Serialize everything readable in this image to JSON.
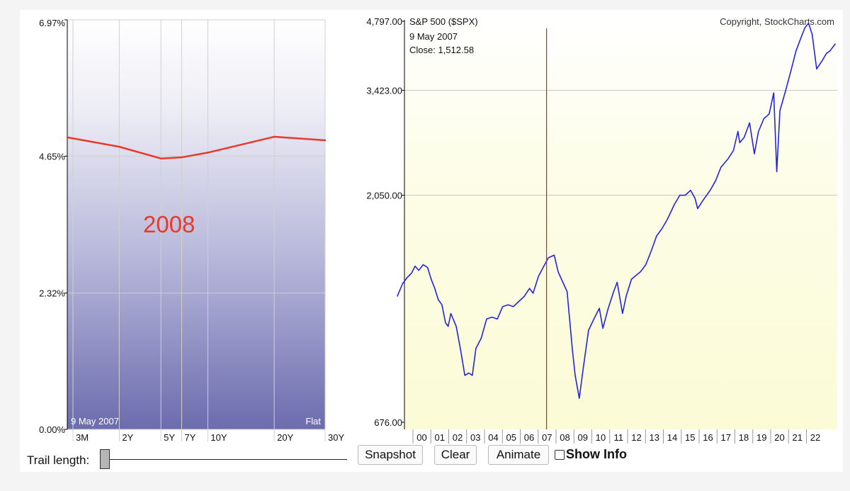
{
  "chart_data": [
    {
      "type": "line",
      "title": "",
      "annotation": "2008",
      "date_label": "9  May 2007",
      "curve_label": "Flat",
      "categories": [
        "3M",
        "2Y",
        "5Y",
        "7Y",
        "10Y",
        "20Y",
        "30Y"
      ],
      "series": [
        {
          "values": [
            4.97,
            4.81,
            4.61,
            4.63,
            4.71,
            4.98,
            4.92
          ]
        }
      ],
      "ylim": [
        0,
        6.97
      ],
      "y_ticks": [
        "6.97%",
        "4.65%",
        "2.32%",
        "0.00%"
      ],
      "y_tick_values": [
        6.97,
        4.65,
        2.32,
        0.0
      ],
      "grid": true
    },
    {
      "type": "line",
      "title": "S&P 500 ($SPX)",
      "copyright": "Copyright, StockCharts.com",
      "date_label": "9  May 2007",
      "close_label": "Close: 1,512.58",
      "y_scale": "log",
      "ylim": [
        676,
        4797
      ],
      "y_ticks": [
        "4,797.00",
        "3,423.00",
        "2,050.00",
        "676.00"
      ],
      "y_tick_values": [
        4797,
        3423,
        2050,
        676
      ],
      "x_ticks": [
        "00",
        "01",
        "02",
        "03",
        "04",
        "05",
        "06",
        "07",
        "08",
        "09",
        "10",
        "11",
        "12",
        "13",
        "14",
        "15",
        "16",
        "17",
        "18",
        "19",
        "20",
        "21",
        "22"
      ],
      "marker_date": 2007.35,
      "series": [
        {
          "x": [
            1999.0,
            1999.3,
            1999.55,
            1999.8,
            2000.0,
            2000.2,
            2000.45,
            2000.7,
            2000.9,
            2001.1,
            2001.3,
            2001.5,
            2001.7,
            2001.85,
            2002.0,
            2002.3,
            2002.55,
            2002.78,
            2003.0,
            2003.2,
            2003.4,
            2003.7,
            2004.0,
            2004.3,
            2004.6,
            2004.9,
            2005.2,
            2005.5,
            2005.8,
            2006.1,
            2006.4,
            2006.6,
            2006.9,
            2007.2,
            2007.45,
            2007.78,
            2008.0,
            2008.3,
            2008.5,
            2008.8,
            2008.95,
            2009.18,
            2009.4,
            2009.7,
            2010.0,
            2010.3,
            2010.5,
            2010.8,
            2011.1,
            2011.3,
            2011.6,
            2011.8,
            2012.1,
            2012.4,
            2012.6,
            2012.9,
            2013.2,
            2013.5,
            2013.8,
            2014.1,
            2014.5,
            2014.8,
            2015.1,
            2015.4,
            2015.65,
            2015.8,
            2016.1,
            2016.5,
            2016.8,
            2017.1,
            2017.5,
            2017.8,
            2018.05,
            2018.15,
            2018.4,
            2018.7,
            2018.97,
            2019.2,
            2019.5,
            2019.8,
            2020.05,
            2020.22,
            2020.4,
            2020.7,
            2021.0,
            2021.3,
            2021.6,
            2021.8,
            2022.0,
            2022.2,
            2022.45,
            2022.75,
            2023.0,
            2023.2,
            2023.5
          ],
          "values": [
            1250,
            1330,
            1370,
            1400,
            1450,
            1420,
            1460,
            1440,
            1360,
            1300,
            1230,
            1200,
            1100,
            1080,
            1150,
            1080,
            960,
            850,
            860,
            850,
            970,
            1020,
            1120,
            1130,
            1120,
            1190,
            1200,
            1190,
            1220,
            1250,
            1300,
            1270,
            1380,
            1450,
            1510,
            1530,
            1410,
            1330,
            1280,
            960,
            850,
            760,
            880,
            1060,
            1120,
            1180,
            1070,
            1180,
            1280,
            1340,
            1150,
            1250,
            1360,
            1390,
            1410,
            1460,
            1560,
            1680,
            1740,
            1820,
            1960,
            2050,
            2050,
            2100,
            2020,
            1920,
            2000,
            2100,
            2200,
            2350,
            2450,
            2550,
            2800,
            2650,
            2720,
            2920,
            2510,
            2800,
            2980,
            3050,
            3380,
            2300,
            3100,
            3400,
            3750,
            4150,
            4450,
            4650,
            4750,
            4500,
            3800,
            3950,
            4100,
            4150,
            4300
          ]
        }
      ]
    }
  ],
  "controls": {
    "trail_label": "Trail length:",
    "trail_level": 0,
    "snapshot_label": "Snapshot",
    "clear_label": "Clear",
    "animate_label": "Animate",
    "show_info_label": "Show Info",
    "show_info_checked": false
  },
  "colors": {
    "yield_curve": "#e8392a",
    "spx_line": "#2323e8",
    "marker_line": "#e01b1b",
    "annotation": "#e8392a"
  }
}
